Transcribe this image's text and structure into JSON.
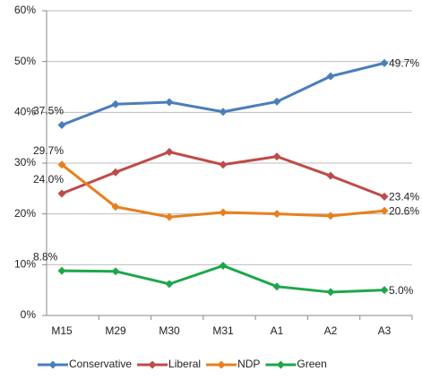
{
  "chart_data": {
    "type": "line",
    "categories": [
      "M15",
      "M29",
      "M30",
      "M31",
      "A1",
      "A2",
      "A3"
    ],
    "series": [
      {
        "name": "Conservative",
        "color": "#4a7ebb",
        "values": [
          37.5,
          41.6,
          42.0,
          40.1,
          42.1,
          47.1,
          49.7
        ],
        "value_labels": [
          "37.5%",
          null,
          null,
          null,
          null,
          null,
          "49.7%"
        ]
      },
      {
        "name": "Liberal",
        "color": "#be4b48",
        "values": [
          24.0,
          28.2,
          32.2,
          29.7,
          31.3,
          27.5,
          23.4
        ],
        "value_labels": [
          "24.0%",
          null,
          null,
          null,
          null,
          null,
          "23.4%"
        ]
      },
      {
        "name": "NDP",
        "color": "#e8801c",
        "values": [
          29.7,
          21.4,
          19.4,
          20.3,
          20.0,
          19.6,
          20.6
        ],
        "value_labels": [
          "29.7%",
          null,
          null,
          null,
          null,
          null,
          "20.6%"
        ]
      },
      {
        "name": "Green",
        "color": "#1fa64a",
        "values": [
          8.8,
          8.7,
          6.2,
          9.8,
          5.7,
          4.6,
          5.0
        ],
        "value_labels": [
          "8.8%",
          null,
          null,
          null,
          null,
          null,
          "5.0%"
        ]
      }
    ],
    "ylim": [
      0,
      60
    ],
    "yticks": [
      {
        "value": 0,
        "label": "0%"
      },
      {
        "value": 10,
        "label": "10%"
      },
      {
        "value": 20,
        "label": "20%"
      },
      {
        "value": 30,
        "label": "30%"
      },
      {
        "value": 40,
        "label": "40%"
      },
      {
        "value": 50,
        "label": "50%"
      },
      {
        "value": 60,
        "label": "60%"
      }
    ],
    "grid": true,
    "legend": "bottom"
  }
}
